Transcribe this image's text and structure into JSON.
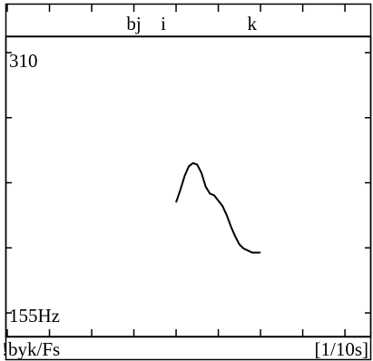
{
  "chart_data": {
    "type": "line",
    "title": "",
    "segment_labels": [
      {
        "text": "bj",
        "x": 3.0
      },
      {
        "text": "i",
        "x": 3.7
      },
      {
        "text": "k",
        "x": 5.8
      }
    ],
    "y_top_label": "310",
    "y_bottom_label": "155Hz",
    "ylim": [
      155,
      310
    ],
    "y_scale": "log",
    "xlim": [
      0,
      8.6
    ],
    "x_ticks": [
      0,
      1,
      2,
      3,
      4,
      5,
      6,
      7,
      8
    ],
    "file_label": "!byk/Fs",
    "time_unit_label": "[1/10s]",
    "series": [
      {
        "x": [
          4.0,
          4.1,
          4.2,
          4.3,
          4.4,
          4.5,
          4.6,
          4.7,
          4.8,
          4.9,
          5.0,
          5.1,
          5.2,
          5.3,
          5.4,
          5.5,
          5.6,
          5.7,
          5.8,
          5.9,
          6.0
        ],
        "y": [
          208,
          215,
          223,
          229,
          231,
          230,
          225,
          217,
          213,
          212,
          209,
          206,
          201,
          195,
          190,
          186,
          184,
          183,
          182,
          182,
          182
        ]
      }
    ]
  }
}
